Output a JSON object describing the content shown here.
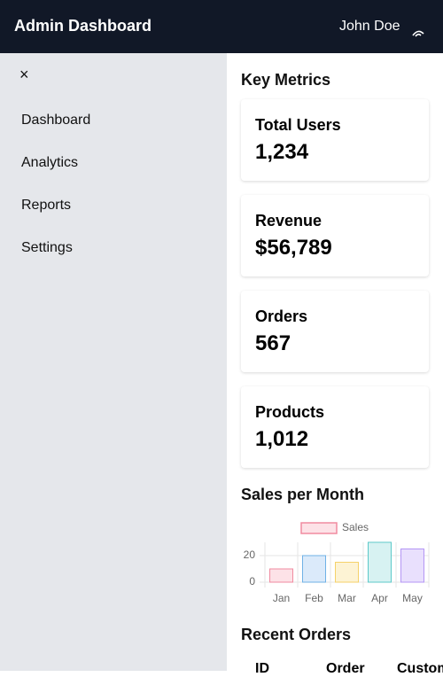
{
  "header": {
    "title": "Admin Dashboard",
    "user": "John Doe"
  },
  "sidebar": {
    "close": "×",
    "items": [
      "Dashboard",
      "Analytics",
      "Reports",
      "Settings"
    ]
  },
  "metrics": {
    "title": "Key Metrics",
    "cards": [
      {
        "label": "Total Users",
        "value": "1,234"
      },
      {
        "label": "Revenue",
        "value": "$56,789"
      },
      {
        "label": "Orders",
        "value": "567"
      },
      {
        "label": "Products",
        "value": "1,012"
      }
    ]
  },
  "chart_data": {
    "type": "bar",
    "title": "Sales per Month",
    "categories": [
      "Jan",
      "Feb",
      "Mar",
      "Apr",
      "May"
    ],
    "series": [
      {
        "name": "Sales",
        "values": [
          10,
          20,
          15,
          30,
          25
        ],
        "color": "#fde2e7",
        "border_color": "#f08ba0"
      }
    ],
    "colors": [
      "#fde2e7",
      "#dbeafa",
      "#fdf3d4",
      "#d7f2f2",
      "#e9e0fd"
    ],
    "border_colors": [
      "#f08ba0",
      "#6fb1e6",
      "#f5d26a",
      "#5cc9c9",
      "#b496f5"
    ],
    "ylim": [
      0,
      30
    ],
    "yticks": [
      0,
      20
    ],
    "grid": true,
    "legend": "top"
  },
  "orders": {
    "title": "Recent Orders",
    "columns": [
      "ID",
      "Order",
      "Customer"
    ]
  }
}
